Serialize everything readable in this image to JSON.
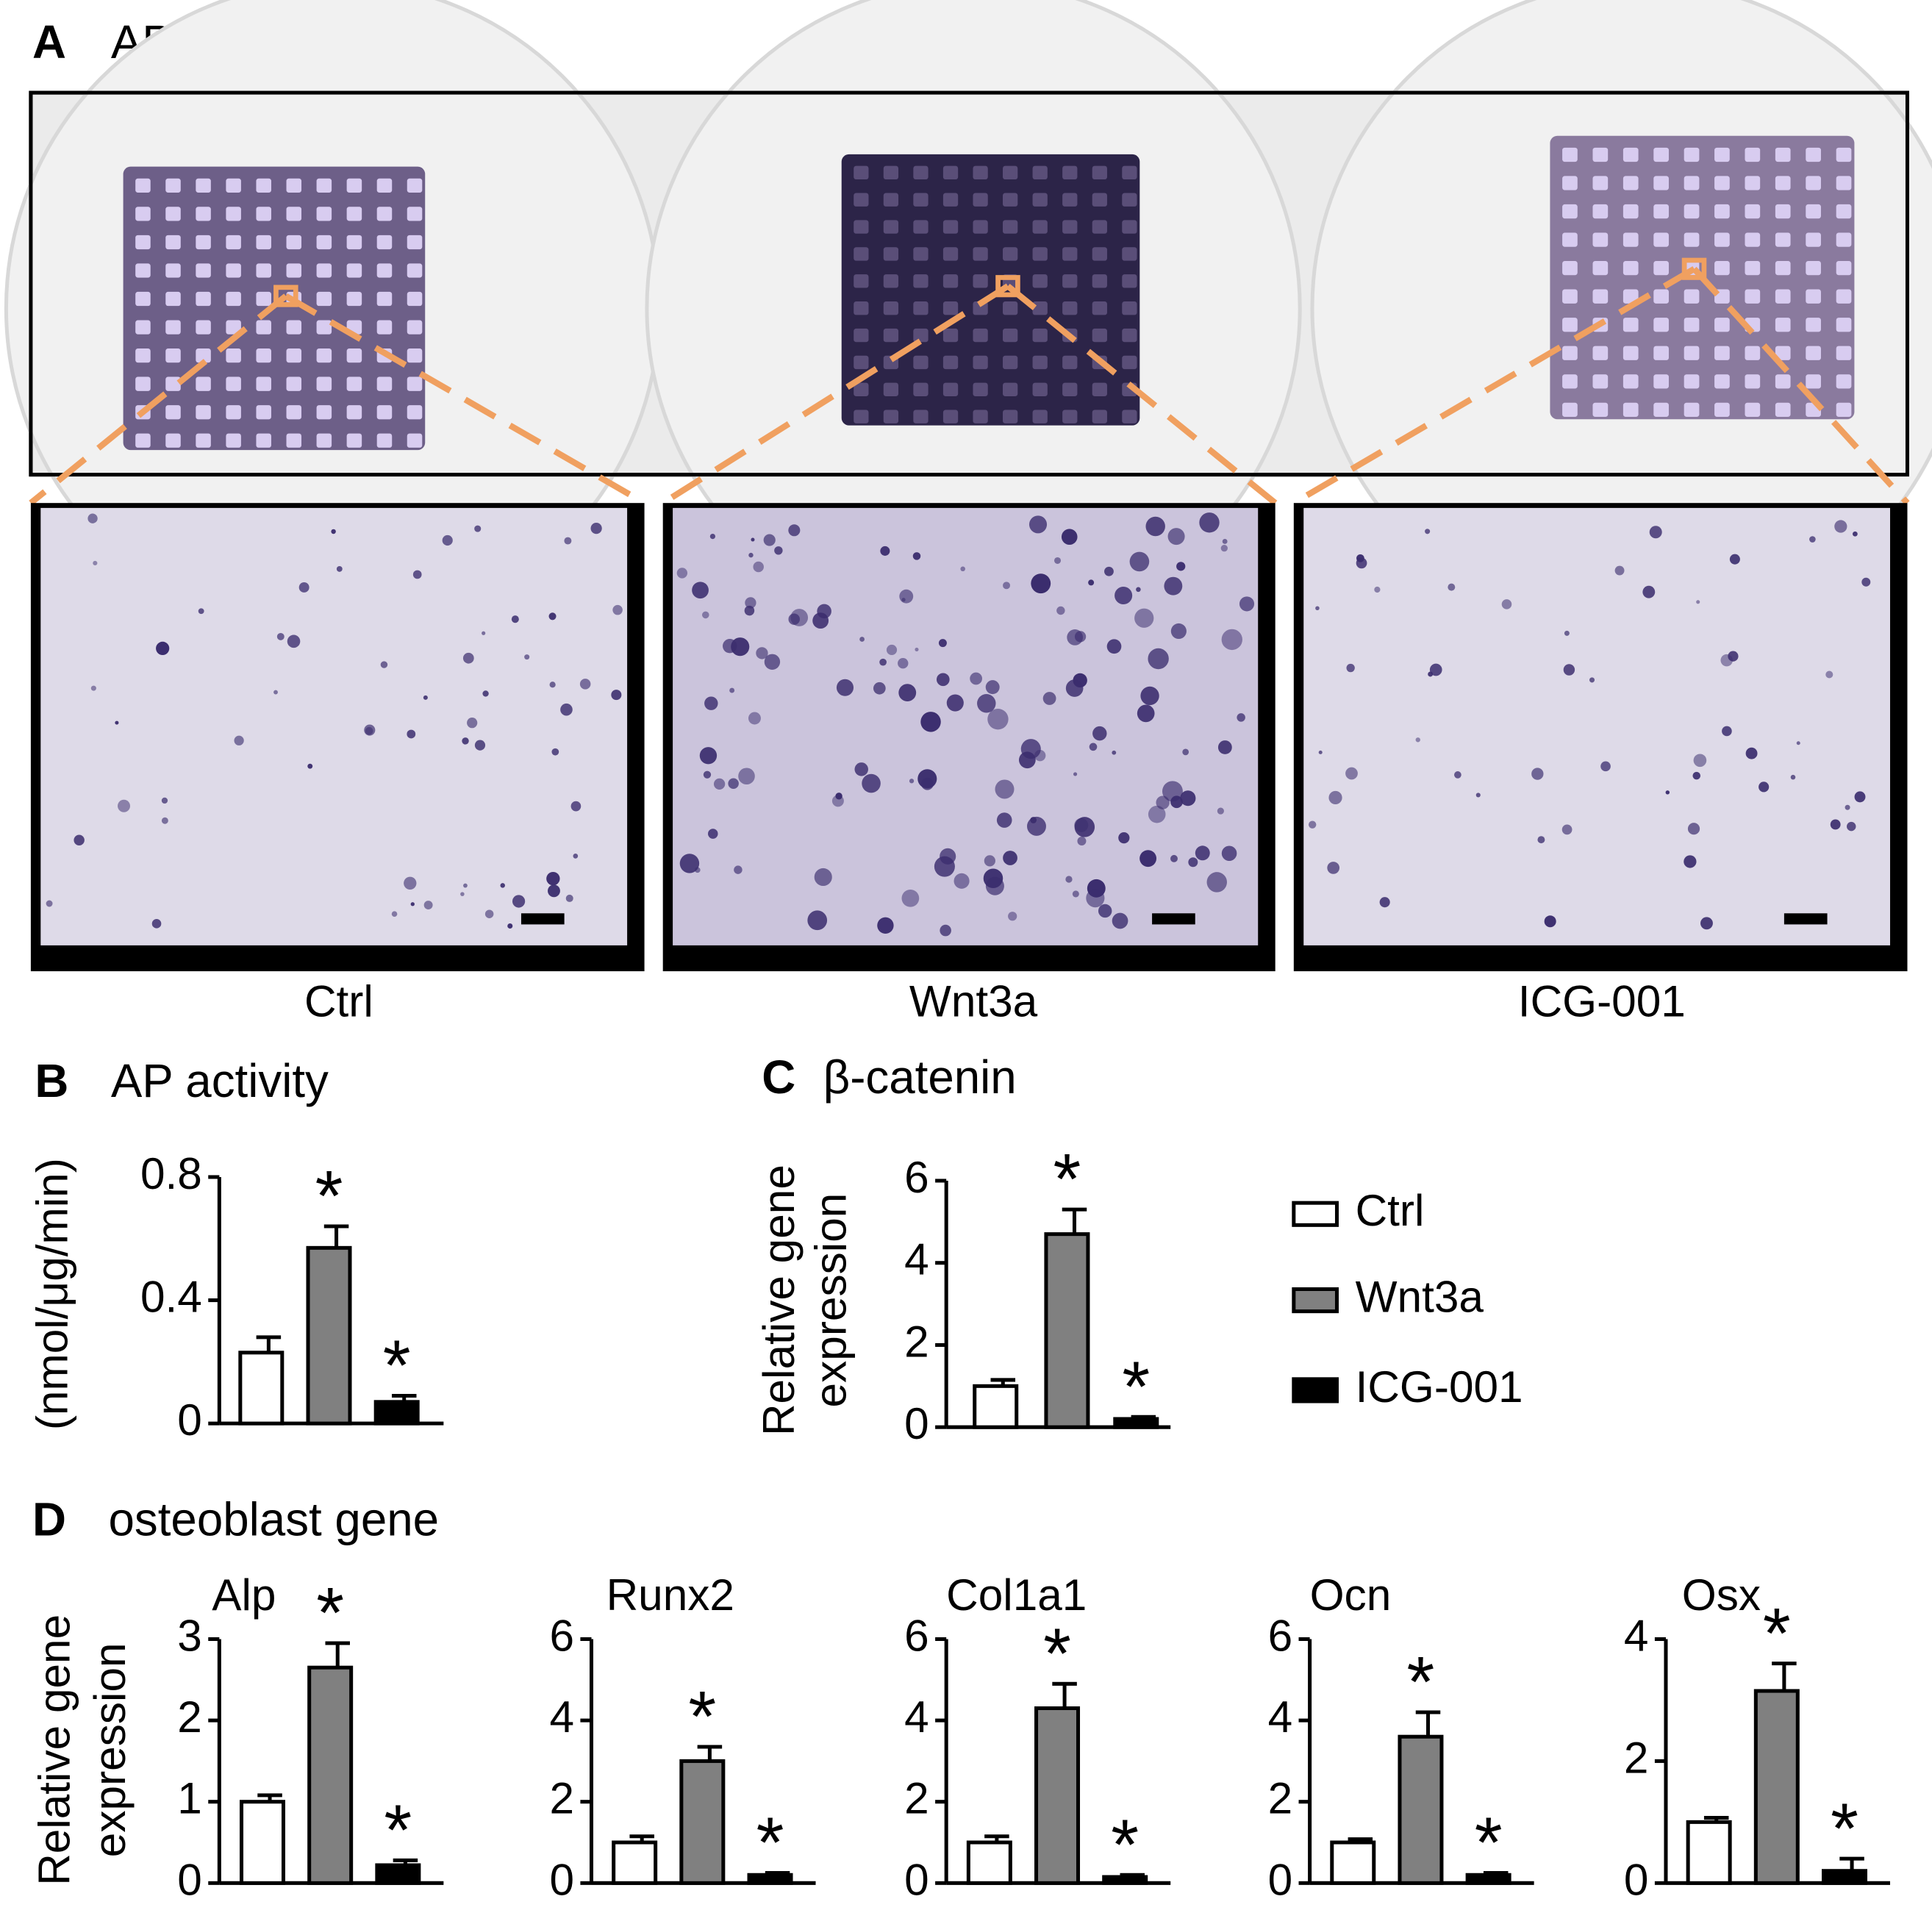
{
  "figure": {
    "panels": [
      {
        "letter": "A",
        "title": "AP staining",
        "captions": [
          "Ctrl",
          "Wnt3a",
          "ICG-001"
        ]
      },
      {
        "letter": "B"
      },
      {
        "letter": "C"
      },
      {
        "letter": "D",
        "title": "osteoblast gene"
      }
    ]
  },
  "legend": [
    {
      "name": "Ctrl",
      "color": "#ffffff"
    },
    {
      "name": "Wnt3a",
      "color": "#808080"
    },
    {
      "name": "ICG-001",
      "color": "#000000"
    }
  ],
  "chart_data": [
    {
      "type": "bar",
      "title": "AP activity",
      "ylabel": [
        "(nmol/μg/min)"
      ],
      "ylim": [
        0,
        0.8
      ],
      "yticks": [
        0,
        0.4,
        0.8
      ],
      "values": [
        0.23,
        0.57,
        0.07
      ],
      "errors": [
        0.05,
        0.07,
        0.02
      ],
      "significance": [
        null,
        "*",
        "*"
      ]
    },
    {
      "type": "bar",
      "title": "β-catenin",
      "ylabel": [
        "Relative gene",
        "expression"
      ],
      "ylim": [
        0,
        6
      ],
      "yticks": [
        0,
        2,
        4,
        6
      ],
      "values": [
        1.0,
        4.7,
        0.2
      ],
      "errors": [
        0.15,
        0.6,
        0.05
      ],
      "significance": [
        null,
        "*",
        "*"
      ]
    },
    {
      "type": "bar",
      "title": "Alp",
      "ylabel": [
        "Relative gene",
        "expression"
      ],
      "ylim": [
        0,
        3
      ],
      "yticks": [
        0,
        1,
        2,
        3
      ],
      "values": [
        1.0,
        2.65,
        0.22
      ],
      "errors": [
        0.08,
        0.3,
        0.06
      ],
      "significance": [
        null,
        "*",
        "*"
      ]
    },
    {
      "type": "bar",
      "title": "Runx2",
      "ylim": [
        0,
        6
      ],
      "yticks": [
        0,
        2,
        4,
        6
      ],
      "values": [
        1.0,
        3.0,
        0.2
      ],
      "errors": [
        0.15,
        0.35,
        0.05
      ],
      "significance": [
        null,
        "*",
        "*"
      ]
    },
    {
      "type": "bar",
      "title": "Col1a1",
      "ylim": [
        0,
        6
      ],
      "yticks": [
        0,
        2,
        4,
        6
      ],
      "values": [
        1.0,
        4.3,
        0.15
      ],
      "errors": [
        0.15,
        0.6,
        0.05
      ],
      "significance": [
        null,
        "*",
        "*"
      ]
    },
    {
      "type": "bar",
      "title": "Ocn",
      "ylim": [
        0,
        6
      ],
      "yticks": [
        0,
        2,
        4,
        6
      ],
      "values": [
        1.0,
        3.6,
        0.2
      ],
      "errors": [
        0.08,
        0.6,
        0.05
      ],
      "significance": [
        null,
        "*",
        "*"
      ]
    },
    {
      "type": "bar",
      "title": "Osx",
      "ylim": [
        0,
        4
      ],
      "yticks": [
        0,
        2,
        4
      ],
      "values": [
        1.0,
        3.15,
        0.2
      ],
      "errors": [
        0.07,
        0.45,
        0.2
      ],
      "significance": [
        null,
        "*",
        "*"
      ]
    }
  ]
}
